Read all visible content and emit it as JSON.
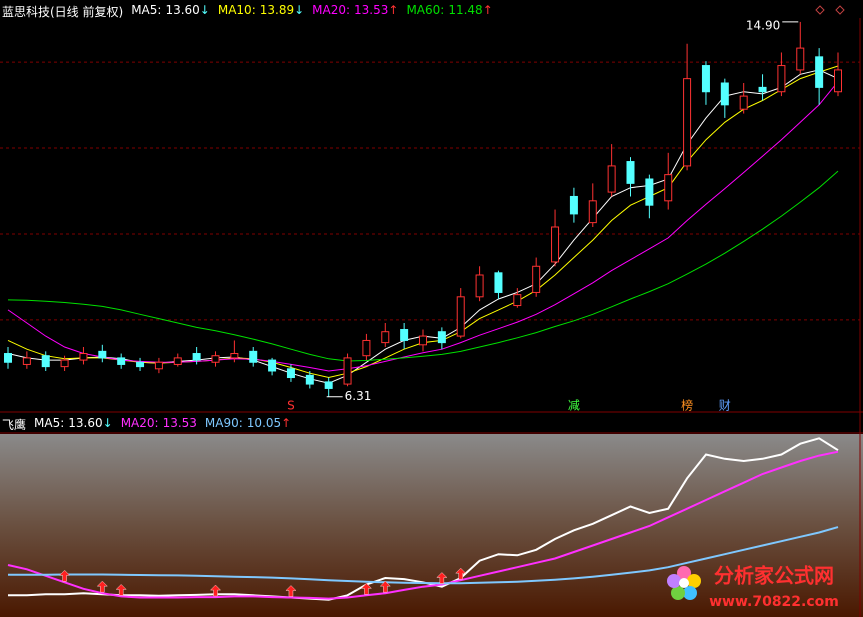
{
  "chart_data": [
    {
      "type": "candlestick",
      "title": "蓝思科技(日线 前复权)",
      "ylim": [
        5.96,
        14.99
      ],
      "grid_lines": [
        13.98,
        12.01,
        10.04,
        8.07
      ],
      "up_color": "#ff3232",
      "down_color": "#54ffff",
      "open": [
        7.3,
        7.05,
        7.25,
        7.0,
        7.15,
        7.35,
        7.2,
        7.1,
        6.95,
        7.05,
        7.3,
        7.1,
        7.2,
        7.35,
        7.15,
        6.95,
        6.8,
        6.65,
        6.6,
        7.25,
        7.55,
        7.85,
        7.5,
        7.8,
        7.7,
        8.6,
        9.15,
        8.4,
        8.7,
        9.4,
        10.9,
        10.3,
        11.0,
        11.7,
        11.3,
        10.8,
        11.6,
        13.9,
        13.5,
        12.9,
        13.4,
        13.3,
        13.8,
        14.1,
        13.3
      ],
      "high": [
        7.45,
        7.35,
        7.35,
        7.25,
        7.45,
        7.5,
        7.3,
        7.2,
        7.2,
        7.3,
        7.45,
        7.35,
        7.6,
        7.45,
        7.2,
        7.05,
        6.9,
        6.75,
        7.3,
        7.75,
        8.0,
        8.0,
        7.85,
        7.9,
        8.8,
        9.3,
        9.2,
        8.8,
        9.5,
        10.6,
        11.1,
        11.2,
        12.1,
        11.8,
        11.4,
        11.9,
        14.4,
        14.0,
        13.6,
        13.5,
        13.7,
        14.2,
        14.9,
        14.3,
        14.2
      ],
      "low": [
        6.95,
        6.95,
        6.9,
        6.9,
        7.05,
        7.1,
        6.95,
        6.9,
        6.85,
        7.0,
        7.05,
        7.0,
        7.1,
        7.0,
        6.8,
        6.65,
        6.5,
        6.31,
        6.55,
        7.15,
        7.45,
        7.4,
        7.35,
        7.4,
        7.65,
        8.5,
        8.55,
        8.35,
        8.6,
        9.3,
        10.3,
        10.2,
        10.9,
        10.9,
        10.4,
        10.6,
        11.5,
        13.0,
        12.7,
        12.8,
        13.1,
        13.2,
        13.7,
        13.0,
        13.2
      ],
      "close": [
        7.1,
        7.2,
        7.0,
        7.15,
        7.3,
        7.2,
        7.05,
        7.0,
        7.1,
        7.2,
        7.15,
        7.25,
        7.3,
        7.1,
        6.9,
        6.75,
        6.6,
        6.5,
        7.2,
        7.6,
        7.8,
        7.6,
        7.7,
        7.55,
        8.6,
        9.1,
        8.7,
        8.65,
        9.3,
        10.2,
        10.5,
        10.8,
        11.6,
        11.2,
        10.7,
        11.4,
        13.6,
        13.3,
        13.0,
        13.2,
        13.3,
        13.9,
        14.3,
        13.4,
        13.8
      ],
      "series": [
        {
          "name": "MA5:",
          "color": "#ffffff",
          "value_label": "13.60",
          "trend": "↓",
          "trend_color": "#54ffff",
          "values": [
            7.3,
            7.2,
            7.15,
            7.15,
            7.2,
            7.22,
            7.18,
            7.1,
            7.08,
            7.12,
            7.15,
            7.2,
            7.22,
            7.15,
            7.0,
            6.85,
            6.72,
            6.62,
            6.8,
            7.1,
            7.4,
            7.6,
            7.7,
            7.65,
            7.9,
            8.3,
            8.55,
            8.7,
            8.9,
            9.35,
            9.9,
            10.4,
            10.9,
            11.1,
            11.15,
            11.3,
            12.1,
            12.7,
            13.2,
            13.3,
            13.25,
            13.4,
            13.7,
            13.8,
            13.6
          ]
        },
        {
          "name": "MA10:",
          "color": "#ffff00",
          "value_label": "13.89",
          "trend": "↓",
          "trend_color": "#54ffff",
          "values": [
            7.6,
            7.4,
            7.25,
            7.18,
            7.2,
            7.2,
            7.15,
            7.1,
            7.08,
            7.1,
            7.12,
            7.15,
            7.2,
            7.18,
            7.1,
            6.98,
            6.85,
            6.75,
            6.85,
            7.0,
            7.2,
            7.4,
            7.55,
            7.6,
            7.8,
            8.1,
            8.3,
            8.5,
            8.75,
            9.1,
            9.5,
            9.9,
            10.35,
            10.7,
            10.9,
            11.1,
            11.7,
            12.2,
            12.6,
            12.9,
            13.1,
            13.35,
            13.6,
            13.75,
            13.89
          ]
        },
        {
          "name": "MA20:",
          "color": "#ff00ff",
          "value_label": "13.53",
          "trend": "↑",
          "trend_color": "#ff3232",
          "values": [
            8.3,
            8.0,
            7.7,
            7.45,
            7.3,
            7.22,
            7.15,
            7.12,
            7.1,
            7.1,
            7.12,
            7.15,
            7.18,
            7.17,
            7.12,
            7.05,
            6.98,
            6.9,
            6.95,
            7.02,
            7.12,
            7.22,
            7.32,
            7.4,
            7.55,
            7.72,
            7.87,
            8.02,
            8.2,
            8.42,
            8.67,
            8.92,
            9.2,
            9.45,
            9.7,
            9.95,
            10.35,
            10.72,
            11.08,
            11.45,
            11.82,
            12.2,
            12.6,
            13.0,
            13.53
          ]
        },
        {
          "name": "MA60:",
          "color": "#00e000",
          "value_label": "11.48",
          "trend": "↑",
          "trend_color": "#ff3232",
          "values": [
            8.53,
            8.52,
            8.5,
            8.47,
            8.43,
            8.38,
            8.3,
            8.2,
            8.1,
            8.0,
            7.9,
            7.82,
            7.73,
            7.63,
            7.52,
            7.4,
            7.28,
            7.18,
            7.13,
            7.14,
            7.17,
            7.2,
            7.24,
            7.28,
            7.35,
            7.45,
            7.55,
            7.66,
            7.78,
            7.92,
            8.05,
            8.2,
            8.37,
            8.55,
            8.72,
            8.9,
            9.12,
            9.35,
            9.6,
            9.87,
            10.15,
            10.45,
            10.77,
            11.1,
            11.48
          ]
        }
      ],
      "annotations": [
        {
          "text": "14.90",
          "index": 42
        },
        {
          "text": "6.31",
          "index": 17
        }
      ],
      "markers": [
        {
          "index": 15,
          "label": "S",
          "color": "#ff3030"
        },
        {
          "index": 30,
          "label": "减",
          "color": "#40ff40"
        },
        {
          "index": 36,
          "label": "榜",
          "color": "#ff9020"
        },
        {
          "index": 38,
          "label": "财",
          "color": "#60a0ff"
        }
      ]
    },
    {
      "type": "line",
      "title": "飞鹰",
      "ylim": [
        5.9,
        14.3
      ],
      "series": [
        {
          "name": "MA5:",
          "color": "#ffffff",
          "value_label": "13.60",
          "trend": "↓",
          "trend_color": "#54ffff",
          "values": [
            6.9,
            6.9,
            6.95,
            6.95,
            7.0,
            6.95,
            6.9,
            6.9,
            6.88,
            6.9,
            6.92,
            6.95,
            6.95,
            6.9,
            6.85,
            6.8,
            6.75,
            6.7,
            6.9,
            7.4,
            7.7,
            7.65,
            7.5,
            7.3,
            7.7,
            8.5,
            8.8,
            8.75,
            9.0,
            9.5,
            9.9,
            10.2,
            10.6,
            11.0,
            10.7,
            10.9,
            12.3,
            13.4,
            13.2,
            13.1,
            13.2,
            13.4,
            13.9,
            14.15,
            13.6
          ]
        },
        {
          "name": "MA20:",
          "color": "#ff30ff",
          "value_label": "13.53",
          "trend": "",
          "values": [
            8.3,
            8.1,
            7.8,
            7.5,
            7.2,
            7.0,
            6.85,
            6.8,
            6.8,
            6.8,
            6.82,
            6.82,
            6.85,
            6.85,
            6.82,
            6.8,
            6.78,
            6.75,
            6.8,
            6.9,
            7.0,
            7.15,
            7.3,
            7.4,
            7.6,
            7.8,
            8.0,
            8.2,
            8.4,
            8.6,
            8.9,
            9.2,
            9.5,
            9.8,
            10.1,
            10.5,
            10.9,
            11.3,
            11.7,
            12.1,
            12.5,
            12.8,
            13.1,
            13.35,
            13.53
          ]
        },
        {
          "name": "MA90:",
          "color": "#7fc8ff",
          "value_label": "10.05",
          "trend": "↑",
          "trend_color": "#ff3232",
          "values": [
            7.85,
            7.85,
            7.85,
            7.86,
            7.86,
            7.86,
            7.85,
            7.84,
            7.83,
            7.82,
            7.8,
            7.78,
            7.76,
            7.74,
            7.72,
            7.68,
            7.64,
            7.6,
            7.56,
            7.53,
            7.5,
            7.48,
            7.47,
            7.46,
            7.46,
            7.48,
            7.5,
            7.53,
            7.57,
            7.62,
            7.68,
            7.76,
            7.85,
            7.95,
            8.05,
            8.2,
            8.4,
            8.6,
            8.8,
            9.0,
            9.2,
            9.4,
            9.6,
            9.8,
            10.05
          ]
        }
      ],
      "signals": [
        3,
        5,
        6,
        11,
        15,
        19,
        20,
        23,
        24
      ]
    }
  ],
  "watermark": {
    "title": "分析家公式网",
    "url": "www.70822.com"
  }
}
